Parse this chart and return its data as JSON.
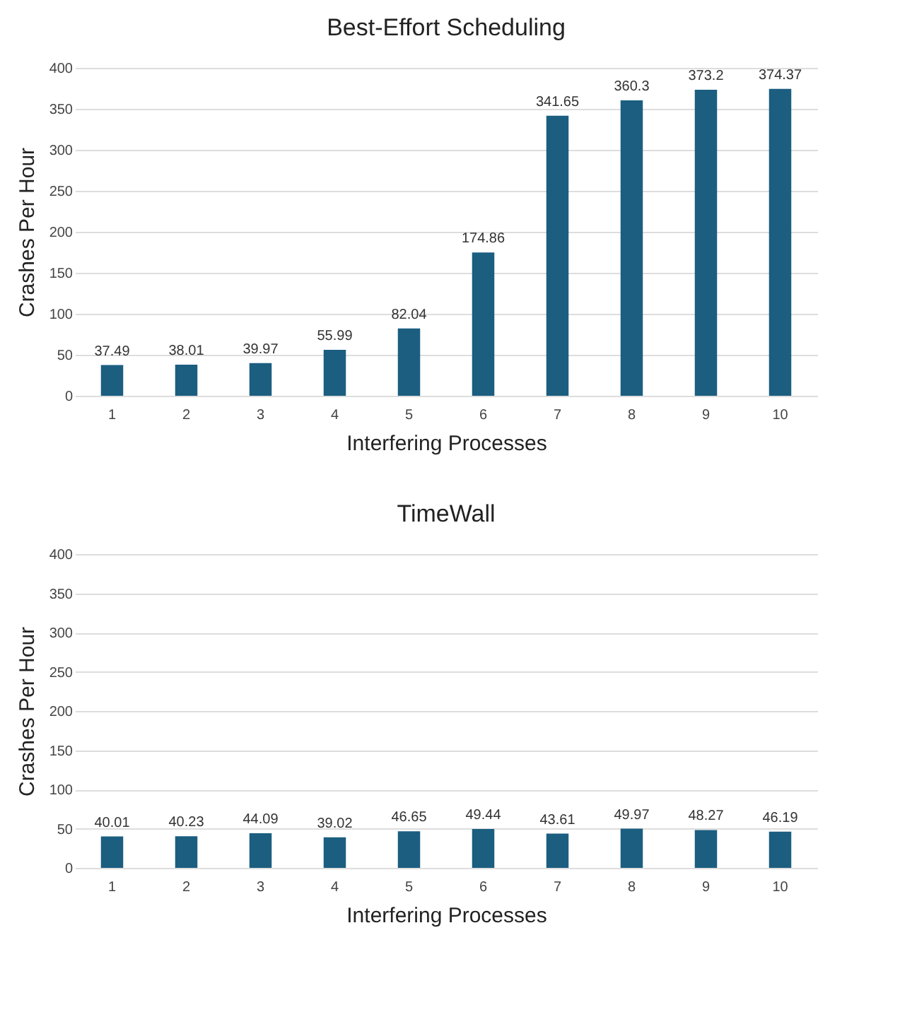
{
  "chart_data": [
    {
      "type": "bar",
      "title": "Best-Effort Scheduling",
      "xlabel": "Interfering Processes",
      "ylabel": "Crashes Per Hour",
      "categories": [
        "1",
        "2",
        "3",
        "4",
        "5",
        "6",
        "7",
        "8",
        "9",
        "10"
      ],
      "values": [
        37.49,
        38.01,
        39.97,
        55.99,
        82.04,
        174.86,
        341.65,
        360.3,
        373.2,
        374.37
      ],
      "color": "#1b5e80",
      "ylim": [
        0,
        400
      ],
      "yticks": [
        0,
        50,
        100,
        150,
        200,
        250,
        300,
        350,
        400
      ],
      "grid": "y",
      "data_labels": true
    },
    {
      "type": "bar",
      "title": "TimeWall",
      "xlabel": "Interfering Processes",
      "ylabel": "Crashes Per Hour",
      "categories": [
        "1",
        "2",
        "3",
        "4",
        "5",
        "6",
        "7",
        "8",
        "9",
        "10"
      ],
      "values": [
        40.01,
        40.23,
        44.09,
        39.02,
        46.65,
        49.44,
        43.61,
        49.97,
        48.27,
        46.19
      ],
      "color": "#1b5e80",
      "ylim": [
        0,
        400
      ],
      "yticks": [
        0,
        50,
        100,
        150,
        200,
        250,
        300,
        350,
        400
      ],
      "grid": "y",
      "data_labels": true
    }
  ]
}
